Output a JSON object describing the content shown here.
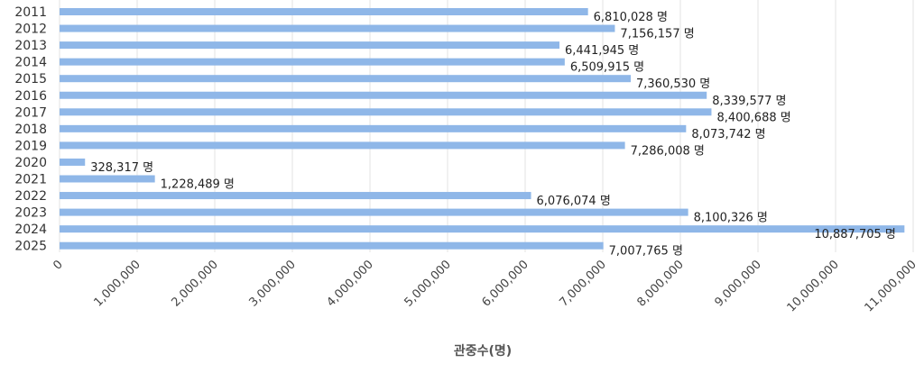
{
  "chart_data": {
    "type": "bar",
    "orientation": "horizontal",
    "xlabel": "관중수(명)",
    "unit_suffix": " 명",
    "xlim": [
      0,
      11000000
    ],
    "x_ticks": [
      "0",
      "1,000,000",
      "2,000,000",
      "3,000,000",
      "4,000,000",
      "5,000,000",
      "6,000,000",
      "7,000,000",
      "8,000,000",
      "9,000,000",
      "10,000,000",
      "11,000,000"
    ],
    "grid": true,
    "bar_color": "#8fb7e8",
    "categories": [
      "2011",
      "2012",
      "2013",
      "2014",
      "2015",
      "2016",
      "2017",
      "2018",
      "2019",
      "2020",
      "2021",
      "2022",
      "2023",
      "2024",
      "2025"
    ],
    "values": [
      6810028,
      7156157,
      6441945,
      6509915,
      7360530,
      8339577,
      8400688,
      8073742,
      7286008,
      328317,
      1228489,
      6076074,
      8100326,
      10887705,
      7007765
    ],
    "labels": [
      "6,810,028 명",
      "7,156,157 명",
      "6,441,945 명",
      "6,509,915 명",
      "7,360,530 명",
      "8,339,577 명",
      "8,400,688 명",
      "8,073,742 명",
      "7,286,008 명",
      "328,317 명",
      "1,228,489 명",
      "6,076,074 명",
      "8,100,326 명",
      "10,887,705 명",
      "7,007,765 명"
    ]
  }
}
